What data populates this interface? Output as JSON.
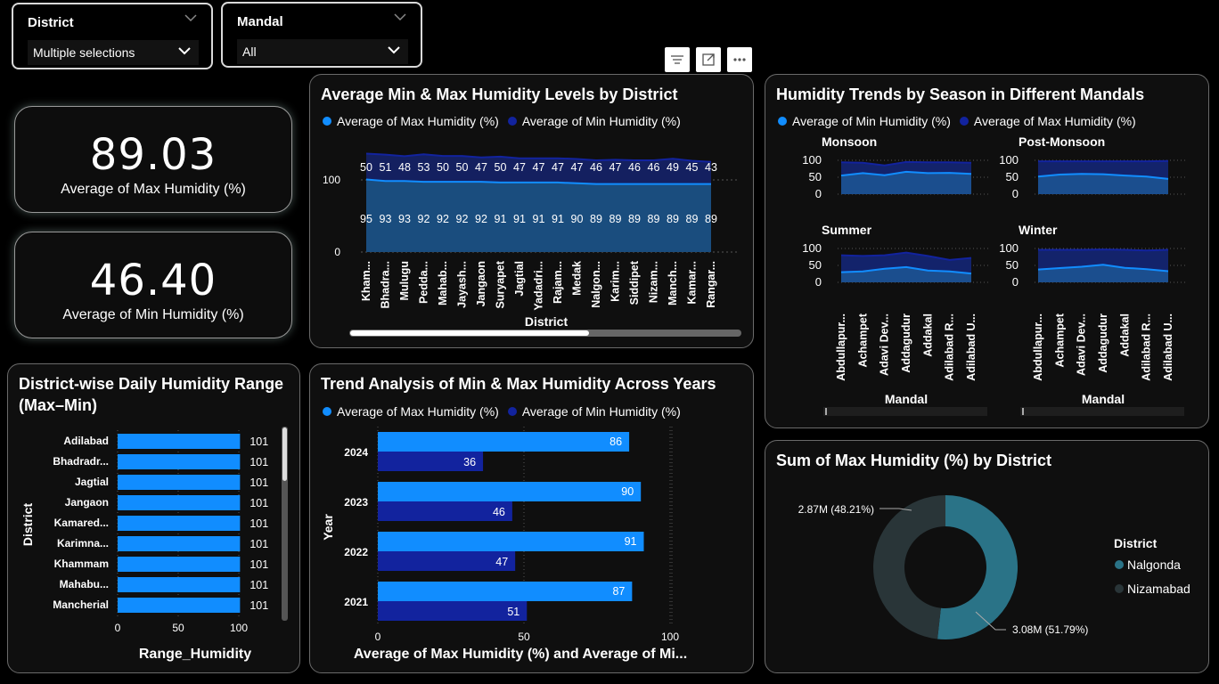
{
  "slicers": {
    "district": {
      "label": "District",
      "value": "Multiple selections"
    },
    "mandal": {
      "label": "Mandal",
      "value": "All"
    }
  },
  "kpis": [
    {
      "value": "89.03",
      "caption": "Average of Max Humidity (%)"
    },
    {
      "value": "46.40",
      "caption": "Average of Min Humidity (%)"
    }
  ],
  "colors": {
    "max": "#118dff",
    "min": "#12239e",
    "mid": "#1f4e85",
    "donut1": "#2a7387",
    "donut2": "#293538"
  },
  "visual_header": {
    "icons": [
      "filter-icon",
      "focus-mode-icon",
      "more-options-icon"
    ]
  },
  "district_chart": {
    "title": "Average Min & Max Humidity Levels by District",
    "legend": [
      "Average of Max Humidity (%)",
      "Average of Min Humidity (%)"
    ],
    "xlabel": "District",
    "yticks": [
      "100",
      "0"
    ]
  },
  "season_chart": {
    "title": "Humidity Trends by Season in Different Mandals",
    "legend": [
      "Average of Min Humidity (%)",
      "Average of Max Humidity (%)"
    ],
    "xlabel": "Mandal",
    "yticks": [
      "100",
      "50",
      "0"
    ]
  },
  "range_chart": {
    "title_line1": "District-wise Daily Humidity Range",
    "title_line2": "(Max–Min)",
    "ylabel": "District",
    "xlabel": "Range_Humidity",
    "xticks": [
      "0",
      "50",
      "100"
    ]
  },
  "year_chart": {
    "title": "Trend Analysis of Min & Max Humidity Across Years",
    "legend": [
      "Average of Max Humidity (%)",
      "Average of Min Humidity (%)"
    ],
    "ylabel": "Year",
    "xlabel": "Average of Max Humidity (%) and Average of Mi...",
    "xticks": [
      "0",
      "50",
      "100"
    ]
  },
  "donut_chart": {
    "title": "Sum of Max Humidity (%) by District",
    "legend_title": "District",
    "labels": [
      "3.08M (51.79%)",
      "2.87M (48.21%)"
    ]
  },
  "chart_data": [
    {
      "type": "area",
      "title": "Average Min & Max Humidity Levels by District",
      "xlabel": "District",
      "categories": [
        "Kham...",
        "Bhadra...",
        "Mulugu",
        "Pedda...",
        "Mahab...",
        "Jayash...",
        "Jangaon",
        "Suryapet",
        "Jagtial",
        "Yadadri...",
        "Rajam...",
        "Medak",
        "Nalgon...",
        "Karim...",
        "Siddipet",
        "Nizam...",
        "Manch...",
        "Kamar...",
        "Rangar..."
      ],
      "series": [
        {
          "name": "Average of Max Humidity (%)",
          "values": [
            95,
            93,
            93,
            92,
            92,
            92,
            92,
            91,
            91,
            91,
            91,
            90,
            89,
            89,
            89,
            89,
            89,
            89,
            89
          ]
        },
        {
          "name": "Average of Min Humidity (%)",
          "values": [
            50,
            51,
            48,
            53,
            50,
            50,
            47,
            50,
            47,
            47,
            47,
            47,
            46,
            47,
            46,
            46,
            49,
            45,
            43
          ]
        }
      ]
    },
    {
      "type": "area",
      "title": "Humidity Trends by Season in Different Mandals",
      "xlabel": "Mandal",
      "ylim": [
        0,
        100
      ],
      "categories": [
        "Abdullapur...",
        "Achampet",
        "Adavi Dev...",
        "Addagudur",
        "Addakal",
        "Adilabad R...",
        "Adilabad U..."
      ],
      "panels": [
        {
          "name": "Monsoon",
          "series": [
            {
              "name": "Average of Min Humidity (%)",
              "values": [
                55,
                62,
                56,
                66,
                62,
                63,
                60
              ]
            },
            {
              "name": "Average of Max Humidity (%)",
              "values": [
                94,
                93,
                85,
                95,
                94,
                94,
                93
              ]
            }
          ]
        },
        {
          "name": "Post-Monsoon",
          "series": [
            {
              "name": "Average of Min Humidity (%)",
              "values": [
                52,
                58,
                60,
                59,
                55,
                52,
                45
              ]
            },
            {
              "name": "Average of Max Humidity (%)",
              "values": [
                97,
                97,
                97,
                97,
                97,
                97,
                98
              ]
            }
          ]
        },
        {
          "name": "Summer",
          "series": [
            {
              "name": "Average of Min Humidity (%)",
              "values": [
                30,
                32,
                40,
                45,
                35,
                32,
                26
              ]
            },
            {
              "name": "Average of Max Humidity (%)",
              "values": [
                80,
                78,
                80,
                88,
                78,
                66,
                72
              ]
            }
          ]
        },
        {
          "name": "Winter",
          "series": [
            {
              "name": "Average of Min Humidity (%)",
              "values": [
                38,
                42,
                46,
                52,
                43,
                39,
                33
              ]
            },
            {
              "name": "Average of Max Humidity (%)",
              "values": [
                96,
                96,
                96,
                97,
                96,
                94,
                96
              ]
            }
          ]
        }
      ]
    },
    {
      "type": "bar",
      "title": "District-wise Daily Humidity Range (Max–Min)",
      "xlabel": "Range_Humidity",
      "ylabel": "District",
      "categories": [
        "Adilabad",
        "Bhadradr...",
        "Jagtial",
        "Jangaon",
        "Kamared...",
        "Karimna...",
        "Khammam",
        "Mahabu...",
        "Mancherial"
      ],
      "values": [
        101,
        101,
        101,
        101,
        101,
        101,
        101,
        101,
        101
      ]
    },
    {
      "type": "bar",
      "title": "Trend Analysis of Min & Max Humidity Across Years",
      "ylabel": "Year",
      "categories": [
        "2024",
        "2023",
        "2022",
        "2021"
      ],
      "series": [
        {
          "name": "Average of Max Humidity (%)",
          "values": [
            86,
            90,
            91,
            87
          ]
        },
        {
          "name": "Average of Min Humidity (%)",
          "values": [
            36,
            46,
            47,
            51
          ]
        }
      ]
    },
    {
      "type": "pie",
      "title": "Sum of Max Humidity (%) by District",
      "legend_title": "District",
      "categories": [
        "Nalgonda",
        "Nizamabad"
      ],
      "values": [
        3.08,
        2.87
      ],
      "percent": [
        51.79,
        48.21
      ]
    }
  ]
}
